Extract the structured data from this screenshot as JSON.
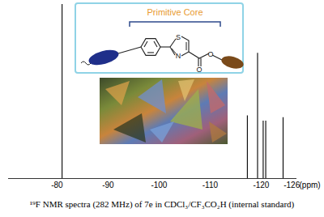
{
  "chart_data": {
    "type": "spectrum",
    "caption": "¹⁹F NMR spectra (282 MHz) of 7e in CDCl₃/CF₃CO₂H (internal standard)",
    "x_label": "(ppm)",
    "xlim": [
      -70.5,
      -127
    ],
    "xticks": [
      -80,
      -90,
      -100,
      -110,
      -120,
      -126
    ],
    "ylim": [
      0,
      1
    ],
    "tick_labels": "x",
    "x": [
      -81,
      -117.3,
      -119.3,
      -120.4,
      -120.9,
      -124.3
    ],
    "values": [
      1,
      0.36,
      0.72,
      0.33,
      0.33,
      0.35
    ],
    "color": "#000000"
  },
  "inset": {
    "title": "Primitive Core",
    "atoms": [
      "S",
      "N",
      "O",
      "O"
    ]
  }
}
